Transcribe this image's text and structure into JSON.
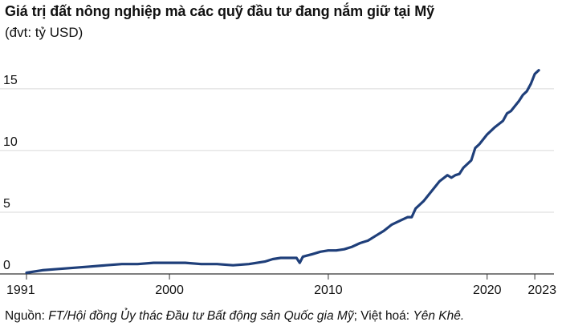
{
  "header": {
    "title": "Giá trị đất nông nghiệp mà các quỹ đầu tư đang nắm giữ tại Mỹ",
    "subtitle": "(đvt: tỷ USD)"
  },
  "footer": {
    "source_prefix": "Nguồn: ",
    "source_body": "FT/Hội đồng Ủy thác Đầu tư Bất động sản Quốc gia Mỹ",
    "credit_prefix": "; Việt hoá: ",
    "credit_body": "Yên Khê."
  },
  "colors": {
    "line": "#1f3f7a",
    "grid": "#d9d9d9",
    "axis": "#333333",
    "text": "#111111"
  },
  "chart_data": {
    "type": "line",
    "title": "Giá trị đất nông nghiệp mà các quỹ đầu tư đang nắm giữ tại Mỹ",
    "subtitle": "(đvt: tỷ USD)",
    "xlabel": "",
    "ylabel": "",
    "xlim": [
      1991,
      2023.5
    ],
    "ylim": [
      0,
      17
    ],
    "x_ticks": [
      1991,
      2000,
      2010,
      2020,
      2023
    ],
    "y_ticks": [
      0,
      5,
      10,
      15
    ],
    "grid": "horizontal",
    "legend": "none",
    "series": [
      {
        "x": [
          1991,
          1992,
          1993,
          1994,
          1995,
          1996,
          1997,
          1998,
          1999,
          2000,
          2001,
          2002,
          2003,
          2004,
          2005,
          2006,
          2006.5,
          2007,
          2007.5,
          2008,
          2008.2,
          2008.4,
          2009,
          2009.5,
          2010,
          2010.5,
          2011,
          2011.5,
          2012,
          2012.5,
          2013,
          2013.5,
          2014,
          2014.5,
          2015,
          2015.25,
          2015.5,
          2016,
          2016.5,
          2017,
          2017.5,
          2017.75,
          2018,
          2018.25,
          2018.5,
          2019,
          2019.25,
          2019.5,
          2020,
          2020.5,
          2021,
          2021.25,
          2021.5,
          2022,
          2022.25,
          2022.5,
          2022.75,
          2023,
          2023.25
        ],
        "values": [
          0.1,
          0.3,
          0.4,
          0.5,
          0.6,
          0.7,
          0.8,
          0.8,
          0.9,
          0.9,
          0.9,
          0.8,
          0.8,
          0.7,
          0.8,
          1.0,
          1.2,
          1.3,
          1.3,
          1.3,
          0.9,
          1.4,
          1.6,
          1.8,
          1.9,
          1.9,
          2.0,
          2.2,
          2.5,
          2.7,
          3.1,
          3.5,
          4.0,
          4.3,
          4.6,
          4.6,
          5.3,
          5.9,
          6.7,
          7.5,
          8.0,
          7.8,
          8.0,
          8.1,
          8.6,
          9.2,
          10.2,
          10.5,
          11.3,
          11.9,
          12.4,
          13.0,
          13.2,
          14.0,
          14.5,
          14.8,
          15.4,
          16.2,
          16.5
        ]
      }
    ]
  }
}
